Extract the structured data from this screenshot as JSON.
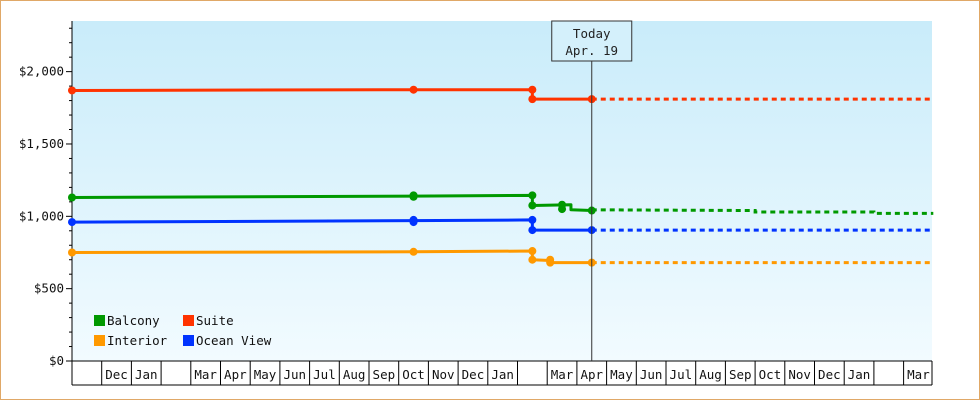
{
  "chart_data": {
    "type": "line",
    "title": "",
    "xlabel": "",
    "ylabel": "",
    "ylim": [
      0,
      2350
    ],
    "y_ticks": [
      {
        "value": 0,
        "label": "$0"
      },
      {
        "value": 500,
        "label": "$500"
      },
      {
        "value": 1000,
        "label": "$1,000"
      },
      {
        "value": 1500,
        "label": "$1,500"
      },
      {
        "value": 2000,
        "label": "$2,000"
      }
    ],
    "x_months": [
      "",
      "Dec",
      "Jan",
      "",
      "Mar",
      "Apr",
      "May",
      "Jun",
      "Jul",
      "Aug",
      "Sep",
      "Oct",
      "Nov",
      "Dec",
      "Jan",
      "",
      "Mar",
      "Apr",
      "May",
      "Jun",
      "Jul",
      "Aug",
      "Sep",
      "Oct",
      "Nov",
      "Dec",
      "Jan",
      "",
      "Mar"
    ],
    "today": {
      "line1": "Today",
      "line2": "Apr. 19",
      "index": 17.5
    },
    "grid": false,
    "legend_position": "bottom-left",
    "series": [
      {
        "name": "Suite",
        "color": "#ff3300",
        "solid": [
          [
            0,
            1870
          ],
          [
            11.5,
            1875
          ],
          [
            15.5,
            1875
          ],
          [
            15.5,
            1810
          ],
          [
            17.5,
            1810
          ]
        ],
        "markers": [
          [
            0,
            1870
          ],
          [
            11.5,
            1875
          ],
          [
            15.5,
            1875
          ],
          [
            15.5,
            1810
          ],
          [
            17.5,
            1810
          ]
        ],
        "forecast": [
          [
            17.5,
            1810
          ],
          [
            29,
            1810
          ]
        ]
      },
      {
        "name": "Balcony",
        "color": "#009900",
        "solid": [
          [
            0,
            1130
          ],
          [
            11.5,
            1140
          ],
          [
            15.5,
            1145
          ],
          [
            15.5,
            1075
          ],
          [
            16.8,
            1080
          ],
          [
            16.8,
            1045
          ],
          [
            17.5,
            1040
          ]
        ],
        "markers": [
          [
            0,
            1130
          ],
          [
            11.5,
            1135
          ],
          [
            11.5,
            1145
          ],
          [
            15.5,
            1145
          ],
          [
            15.5,
            1075
          ],
          [
            16.5,
            1080
          ],
          [
            16.5,
            1050
          ],
          [
            17.5,
            1040
          ]
        ],
        "forecast": [
          [
            17.5,
            1045
          ],
          [
            23,
            1040
          ],
          [
            23,
            1030
          ],
          [
            27,
            1030
          ],
          [
            27,
            1020
          ],
          [
            29,
            1020
          ]
        ]
      },
      {
        "name": "Ocean View",
        "color": "#0033ff",
        "solid": [
          [
            0,
            960
          ],
          [
            11.5,
            970
          ],
          [
            15.5,
            975
          ],
          [
            15.5,
            905
          ],
          [
            17.5,
            905
          ]
        ],
        "markers": [
          [
            0,
            960
          ],
          [
            11.5,
            960
          ],
          [
            11.5,
            975
          ],
          [
            15.5,
            975
          ],
          [
            15.5,
            905
          ],
          [
            17.5,
            905
          ]
        ],
        "forecast": [
          [
            17.5,
            905
          ],
          [
            29,
            905
          ]
        ]
      },
      {
        "name": "Interior",
        "color": "#ff9900",
        "solid": [
          [
            0,
            750
          ],
          [
            11.5,
            755
          ],
          [
            15.5,
            760
          ],
          [
            15.5,
            700
          ],
          [
            16.1,
            695
          ],
          [
            16.1,
            680
          ],
          [
            17.5,
            680
          ]
        ],
        "markers": [
          [
            0,
            750
          ],
          [
            11.5,
            755
          ],
          [
            15.5,
            760
          ],
          [
            15.5,
            700
          ],
          [
            16.1,
            700
          ],
          [
            16.1,
            680
          ],
          [
            17.5,
            680
          ]
        ],
        "forecast": [
          [
            17.5,
            680
          ],
          [
            29,
            680
          ]
        ]
      }
    ],
    "legend": [
      {
        "name": "Balcony",
        "color": "#009900"
      },
      {
        "name": "Suite",
        "color": "#ff3300"
      },
      {
        "name": "Interior",
        "color": "#ff9900"
      },
      {
        "name": "Ocean View",
        "color": "#0033ff"
      }
    ]
  }
}
